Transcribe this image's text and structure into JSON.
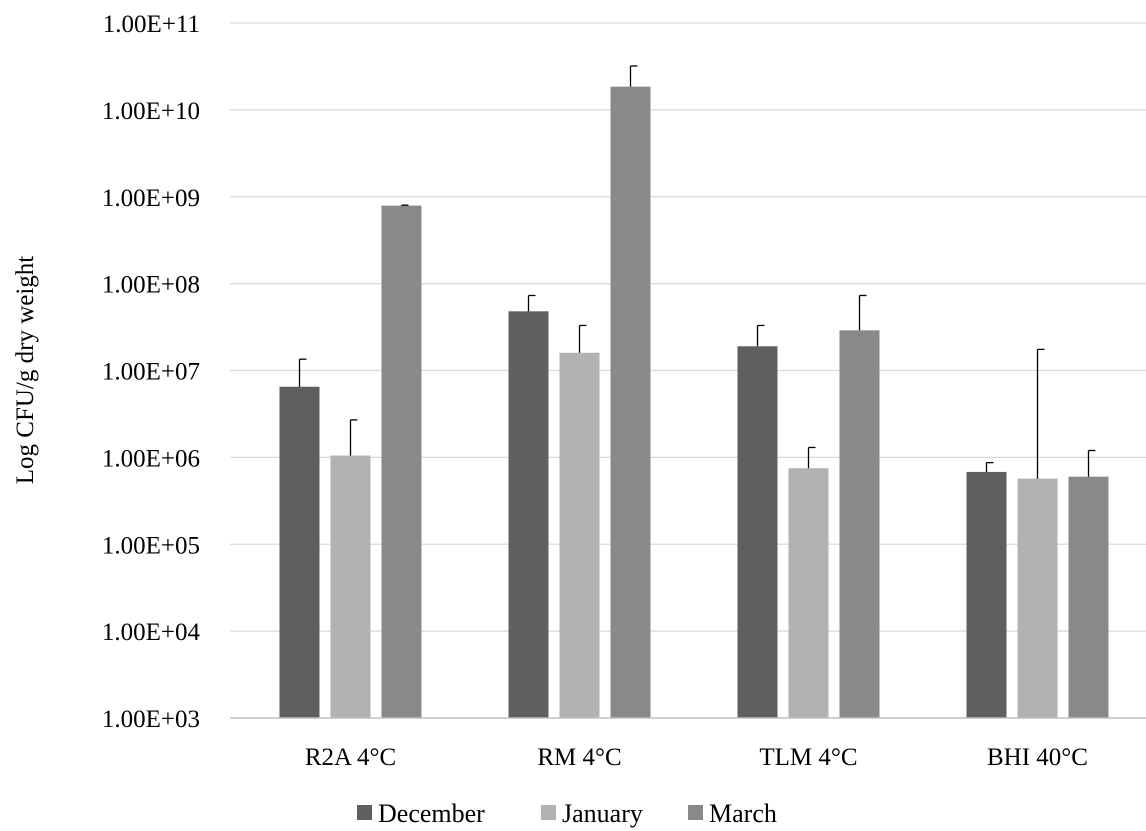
{
  "chart_data": {
    "type": "bar",
    "title": "",
    "xlabel": "",
    "ylabel": "Log CFU/g dry weight",
    "y_scale": "log",
    "ylim": [
      1000,
      100000000000
    ],
    "y_ticks": [
      {
        "value": 1000,
        "label": "1.00E+03"
      },
      {
        "value": 10000,
        "label": "1.00E+04"
      },
      {
        "value": 100000,
        "label": "1.00E+05"
      },
      {
        "value": 1000000,
        "label": "1.00E+06"
      },
      {
        "value": 10000000,
        "label": "1.00E+07"
      },
      {
        "value": 100000000,
        "label": "1.00E+08"
      },
      {
        "value": 1000000000,
        "label": "1.00E+09"
      },
      {
        "value": 10000000000,
        "label": "1.00E+10"
      },
      {
        "value": 100000000000,
        "label": "1.00E+11"
      }
    ],
    "grid": true,
    "legend_position": "bottom",
    "categories": [
      "R2A 4°C",
      "RM 4°C",
      "TLM 4°C",
      "BHI 40°C"
    ],
    "series": [
      {
        "name": "December",
        "color": "#5f5f5f",
        "values": [
          6500000,
          48000000,
          19000000,
          680000
        ],
        "error_upper": [
          13500000,
          73000000,
          33000000,
          870000
        ]
      },
      {
        "name": "January",
        "color": "#b2b2b2",
        "values": [
          1050000,
          16000000,
          750000,
          570000
        ],
        "error_upper": [
          2700000,
          33000000,
          1300000,
          17500000
        ]
      },
      {
        "name": "March",
        "color": "#898989",
        "values": [
          790000000,
          18500000000,
          29000000,
          600000
        ],
        "error_upper": [
          800000000,
          32000000000,
          73000000,
          1200000
        ]
      }
    ]
  }
}
